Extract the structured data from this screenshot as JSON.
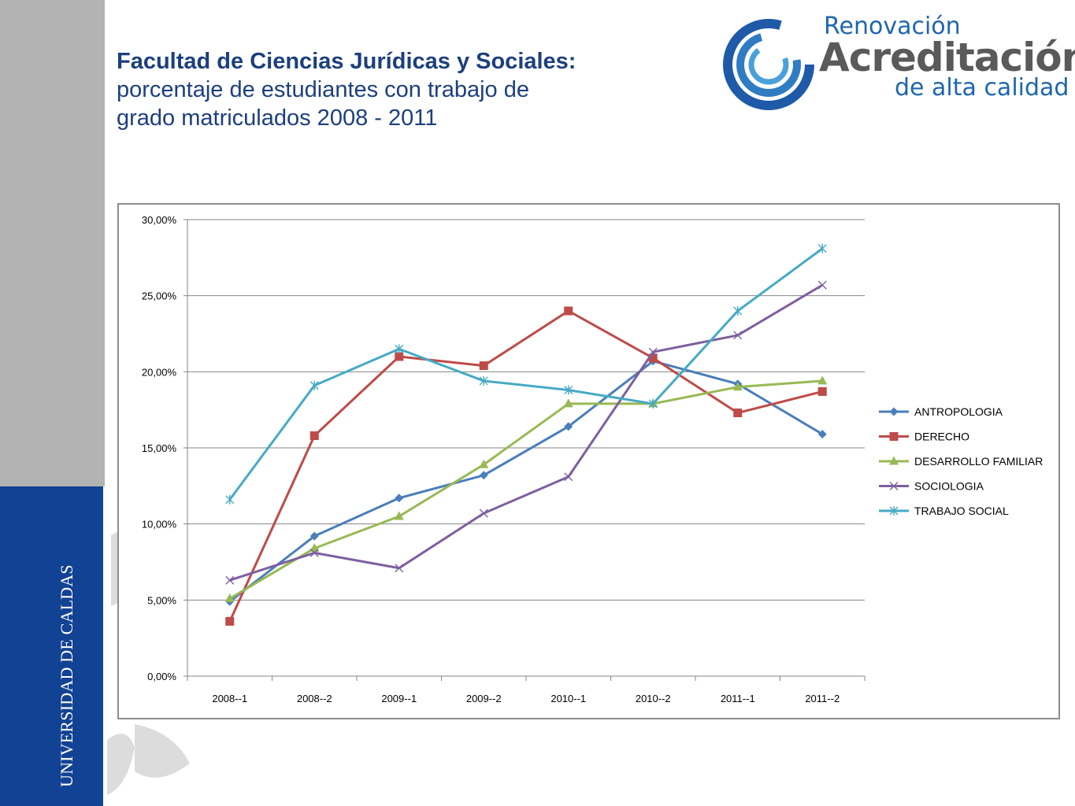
{
  "sidebar": {
    "vertical_text": "UNIVERSIDAD DE CALDAS"
  },
  "title": {
    "line1": "Facultad de Ciencias Jurídicas y Sociales:",
    "line2": "porcentaje de estudiantes con trabajo de",
    "line3": "grado matriculados 2008 - 2011"
  },
  "logo": {
    "line1": "Renovación",
    "line2": "Acreditación",
    "line3": "de alta calidad"
  },
  "chart_data": {
    "type": "line",
    "title": "",
    "xlabel": "",
    "ylabel": "",
    "categories": [
      "2008--1",
      "2008--2",
      "2009--1",
      "2009--2",
      "2010--1",
      "2010--2",
      "2011--1",
      "2011--2"
    ],
    "ylim": [
      0,
      30
    ],
    "yticks": [
      0,
      5,
      10,
      15,
      20,
      25,
      30
    ],
    "ytick_labels": [
      "0,00%",
      "5,00%",
      "10,00%",
      "15,00%",
      "20,00%",
      "25,00%",
      "30,00%"
    ],
    "grid": "horizontal",
    "legend_position": "right",
    "series": [
      {
        "name": "ANTROPOLOGIA",
        "color": "#4a7ebb",
        "marker": "diamond",
        "values": [
          4.9,
          9.2,
          11.7,
          13.2,
          16.4,
          20.7,
          19.2,
          15.9
        ]
      },
      {
        "name": "DERECHO",
        "color": "#be4b48",
        "marker": "square",
        "values": [
          3.6,
          15.8,
          21.0,
          20.4,
          24.0,
          20.9,
          17.3,
          18.7
        ]
      },
      {
        "name": "DESARROLLO FAMILIAR",
        "color": "#98b954",
        "marker": "triangle",
        "values": [
          5.1,
          8.4,
          10.5,
          13.9,
          17.9,
          17.9,
          19.0,
          19.4
        ]
      },
      {
        "name": "SOCIOLOGIA",
        "color": "#7d60a0",
        "marker": "x",
        "values": [
          6.3,
          8.1,
          7.1,
          10.7,
          13.1,
          21.3,
          22.4,
          25.7
        ]
      },
      {
        "name": "TRABAJO SOCIAL",
        "color": "#46aac5",
        "marker": "star",
        "values": [
          11.6,
          19.1,
          21.5,
          19.4,
          18.8,
          17.9,
          24.0,
          28.1
        ]
      }
    ]
  }
}
